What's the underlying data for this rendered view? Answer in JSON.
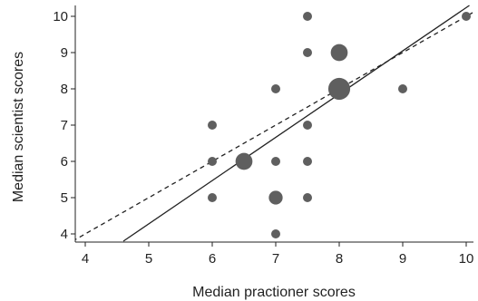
{
  "chart_data": {
    "type": "scatter",
    "title": "",
    "xlabel": "Median practioner scores",
    "ylabel": "Median scientist scores",
    "xlim": [
      3.8,
      10.1
    ],
    "ylim": [
      3.8,
      10.2
    ],
    "xticks": [
      4,
      5,
      6,
      7,
      8,
      9,
      10
    ],
    "yticks": [
      4,
      5,
      6,
      7,
      8,
      9,
      10
    ],
    "grid": false,
    "marker_color": "#5f5f5f",
    "points": [
      {
        "x": 6,
        "y": 5,
        "count": 1
      },
      {
        "x": 6,
        "y": 6,
        "count": 1
      },
      {
        "x": 6,
        "y": 7,
        "count": 1
      },
      {
        "x": 6.5,
        "y": 6,
        "count": 3
      },
      {
        "x": 7,
        "y": 4,
        "count": 1
      },
      {
        "x": 7,
        "y": 5,
        "count": 2
      },
      {
        "x": 7,
        "y": 6,
        "count": 1
      },
      {
        "x": 7,
        "y": 8,
        "count": 1
      },
      {
        "x": 7.5,
        "y": 5,
        "count": 1
      },
      {
        "x": 7.5,
        "y": 6,
        "count": 1
      },
      {
        "x": 7.5,
        "y": 7,
        "count": 1
      },
      {
        "x": 7.5,
        "y": 9,
        "count": 1
      },
      {
        "x": 7.5,
        "y": 10,
        "count": 1
      },
      {
        "x": 8,
        "y": 8,
        "count": 5
      },
      {
        "x": 8,
        "y": 9,
        "count": 3
      },
      {
        "x": 9,
        "y": 8,
        "count": 1
      },
      {
        "x": 10,
        "y": 10,
        "count": 1
      }
    ],
    "lines": [
      {
        "style": "solid",
        "color": "#222222",
        "x": [
          4.6,
          10.05
        ],
        "y": [
          3.8,
          10.3
        ]
      },
      {
        "style": "dashed",
        "color": "#222222",
        "x": [
          3.8,
          10.1
        ],
        "y": [
          3.8,
          10.1
        ]
      }
    ]
  }
}
